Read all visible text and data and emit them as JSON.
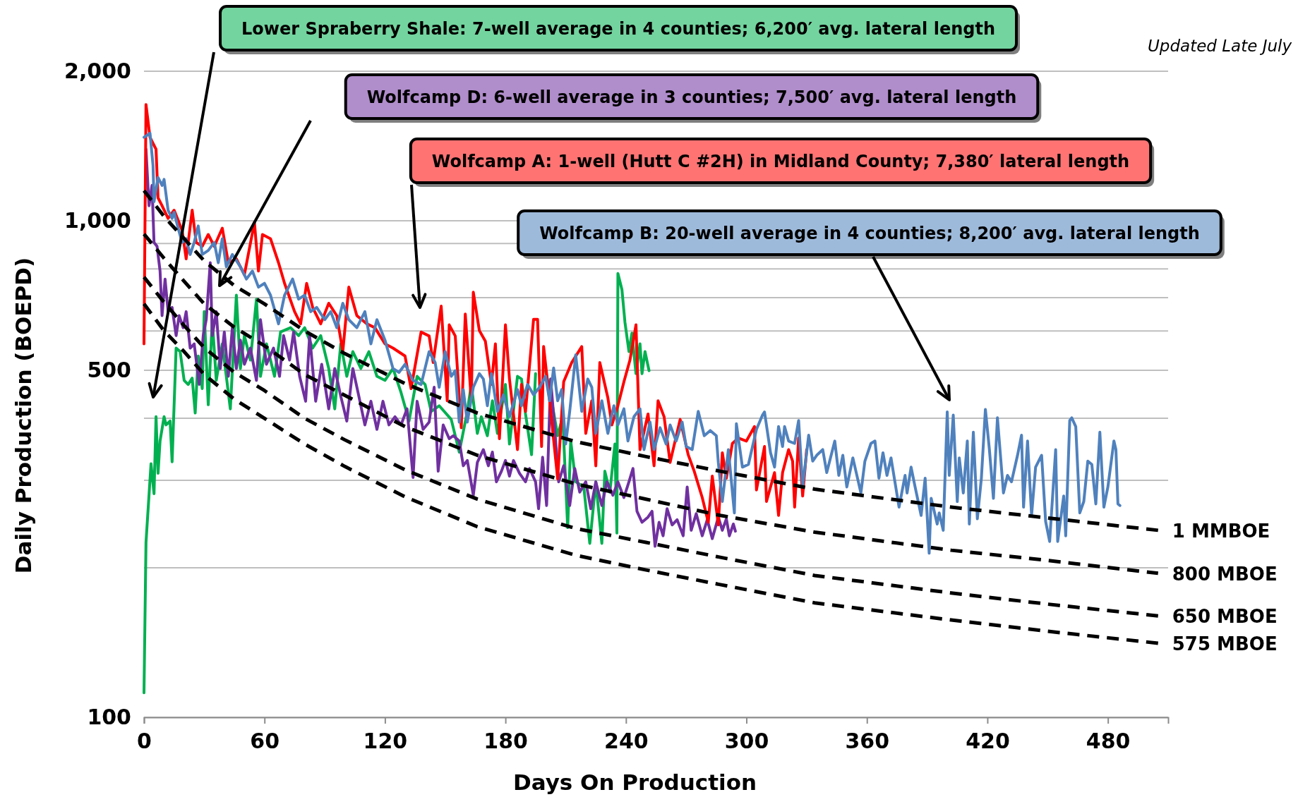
{
  "chart_data": {
    "type": "line",
    "xlabel": "Days On Production",
    "ylabel": "Daily Production (BOEPD)",
    "log": "y",
    "grid": "y",
    "xlim": [
      0,
      510
    ],
    "xticks": [
      0,
      60,
      120,
      180,
      240,
      300,
      360,
      420,
      480
    ],
    "ylim": [
      100,
      2000
    ],
    "yticks": [
      {
        "value": 100,
        "label": "100"
      },
      {
        "value": 200,
        "label": null
      },
      {
        "value": 300,
        "label": null
      },
      {
        "value": 400,
        "label": null
      },
      {
        "value": 500,
        "label": "500"
      },
      {
        "value": 600,
        "label": null
      },
      {
        "value": 700,
        "label": null
      },
      {
        "value": 800,
        "label": null
      },
      {
        "value": 900,
        "label": null
      },
      {
        "value": 1000,
        "label": "1,000"
      },
      {
        "value": 2000,
        "label": "2,000"
      }
    ],
    "series": [
      {
        "color": "#00b050",
        "x": [
          0,
          1,
          3.5,
          5,
          6,
          7,
          8,
          10,
          11,
          13,
          14,
          16,
          18,
          20,
          22,
          24,
          25.5,
          27,
          29,
          30,
          32,
          34,
          36,
          39,
          43,
          46,
          48,
          50,
          53,
          56,
          58,
          61,
          65,
          68,
          73,
          77,
          80,
          84,
          88,
          92,
          95,
          98,
          101,
          104,
          108,
          112,
          116,
          120,
          124,
          128,
          132,
          136,
          140,
          143,
          147,
          153,
          157,
          161,
          163,
          166,
          168,
          171,
          173.5,
          176,
          180,
          182,
          186,
          188,
          190,
          193,
          195,
          198,
          200,
          203,
          206,
          208.5,
          211,
          212.5,
          215,
          219,
          222,
          225,
          228,
          229.5,
          232,
          234.5,
          235.5,
          236,
          238,
          239.5,
          241.5,
          243,
          245,
          247,
          248,
          249.5,
          251.5
        ],
        "values": [
          112,
          225,
          324,
          282,
          403,
          310,
          360,
          403,
          388,
          395,
          327,
          554,
          545,
          477,
          468,
          482,
          410,
          534,
          459,
          656,
          426,
          632,
          477,
          565,
          418,
          708,
          504,
          587,
          524,
          695,
          486,
          565,
          486,
          597,
          609,
          587,
          609,
          554,
          587,
          504,
          418,
          565,
          486,
          545,
          504,
          545,
          486,
          477,
          504,
          451,
          395,
          486,
          468,
          413,
          424,
          398,
          342,
          413,
          468,
          373,
          403,
          369,
          434,
          373,
          468,
          355,
          486,
          480,
          408,
          338,
          492,
          null,
          499,
          434,
          369,
          403,
          241,
          360,
          298,
          291,
          224,
          298,
          224,
          313,
          284,
          355,
          235,
          783,
          727,
          625,
          545,
          594,
          492,
          565,
          492,
          545,
          499
        ]
      },
      {
        "color": "#7030a0",
        "x": [
          1,
          2.5,
          4,
          5,
          6.5,
          8,
          9,
          10.5,
          12,
          14,
          16,
          17.5,
          19.5,
          21,
          23,
          25,
          27.5,
          29.5,
          31,
          33,
          34,
          36,
          38,
          40,
          42,
          44,
          46,
          48,
          50,
          53,
          56,
          58,
          61,
          64.5,
          67.5,
          69.5,
          72.5,
          74.5,
          77.5,
          80.5,
          82.5,
          85.5,
          88.5,
          92,
          95,
          98,
          101,
          104,
          107,
          110,
          113,
          116,
          119,
          122,
          125,
          128,
          131,
          134,
          136,
          139,
          142,
          144.5,
          146.5,
          149,
          152,
          154,
          157,
          159,
          161,
          164,
          166,
          169,
          171.5,
          173.5,
          175.5,
          178,
          180,
          182,
          184,
          187,
          190,
          192,
          195,
          196.5,
          198.5,
          200.5,
          202.5,
          204.5,
          206.5,
          209,
          212,
          214.5,
          217,
          220,
          222.5,
          225,
          228,
          230.5,
          233.5,
          236,
          239,
          241.5,
          243.5,
          245.5,
          248,
          251,
          253,
          254.5,
          256.5,
          258.5,
          260.5,
          263,
          265.5,
          268.5,
          270.5,
          272.5,
          275,
          278,
          280.5,
          283,
          286,
          288,
          290,
          291.5,
          293.5,
          294.5
        ],
        "values": [
          1393,
          1072,
          1178,
          904,
          888,
          792,
          644,
          763,
          656,
          669,
          587,
          644,
          609,
          656,
          554,
          565,
          468,
          587,
          632,
          823,
          587,
          656,
          504,
          597,
          486,
          609,
          504,
          575,
          514,
          554,
          477,
          632,
          514,
          554,
          486,
          587,
          524,
          597,
          486,
          433,
          587,
          433,
          514,
          418,
          504,
          443,
          395,
          504,
          443,
          388,
          433,
          380,
          433,
          388,
          403,
          388,
          418,
          304,
          433,
          380,
          393,
          462,
          313,
          388,
          364,
          369,
          360,
          321,
          329,
          280,
          326,
          346,
          321,
          342,
          298,
          313,
          329,
          306,
          329,
          310,
          298,
          317,
          298,
          263,
          334,
          267,
          480,
          383,
          298,
          321,
          267,
          317,
          284,
          298,
          263,
          298,
          267,
          298,
          280,
          298,
          277,
          298,
          317,
          260,
          247,
          253,
          260,
          221,
          247,
          232,
          263,
          244,
          250,
          232,
          291,
          238,
          257,
          232,
          250,
          229,
          253,
          238,
          251,
          232,
          245,
          237
        ]
      },
      {
        "color": "#ff0000",
        "x": [
          0,
          1,
          3,
          6,
          7,
          9,
          12,
          15,
          19,
          21,
          24,
          26,
          29,
          32,
          35,
          39,
          42,
          46,
          50,
          55,
          57,
          59,
          63,
          67,
          70,
          75,
          78,
          81,
          84,
          88,
          92,
          96,
          99,
          102,
          106,
          111,
          115,
          120,
          124,
          130,
          133,
          138,
          142,
          144,
          148,
          151,
          152,
          155,
          158,
          160,
          163,
          164,
          167,
          170,
          173,
          175,
          177,
          180,
          182,
          186,
          188,
          190,
          194,
          196,
          198,
          199,
          202,
          206,
          209,
          213,
          218,
          220,
          223,
          225,
          227,
          231,
          233,
          236,
          239,
          242,
          245,
          247,
          251,
          254,
          256,
          259,
          262,
          267,
          271,
          274,
          278,
          281,
          283,
          286,
          288,
          290,
          293,
          296,
          300,
          304,
          305,
          309,
          310,
          314,
          316,
          318,
          321,
          323,
          324,
          326,
          328,
          330
        ],
        "values": [
          565,
          1714,
          1472,
          1393,
          1112,
          1072,
          1011,
          1050,
          956,
          838,
          1050,
          904,
          888,
          938,
          888,
          966,
          823,
          838,
          778,
          993,
          792,
          938,
          920,
          823,
          748,
          656,
          620,
          748,
          669,
          620,
          682,
          644,
          545,
          735,
          644,
          620,
          609,
          565,
          554,
          534,
          459,
          597,
          586,
          518,
          673,
          434,
          617,
          586,
          383,
          649,
          434,
          718,
          601,
          572,
          468,
          565,
          364,
          617,
          480,
          346,
          468,
          413,
          633,
          633,
          351,
          558,
          434,
          302,
          474,
          518,
          558,
          373,
          434,
          321,
          518,
          440,
          388,
          424,
          474,
          524,
          617,
          346,
          408,
          321,
          434,
          403,
          326,
          398,
          338,
          313,
          277,
          247,
          306,
          244,
          341,
          303,
          356,
          365,
          360,
          385,
          287,
          351,
          272,
          311,
          255,
          311,
          346,
          328,
          265,
          365,
          279,
          346
        ]
      },
      {
        "color": "#4f81bd",
        "x": [
          0,
          3,
          4.5,
          5,
          7,
          9,
          10,
          12,
          14,
          15,
          17,
          19,
          21,
          23,
          25,
          27,
          29,
          32,
          35,
          37,
          39,
          41,
          44,
          48,
          51,
          54,
          57,
          60,
          63,
          67,
          70,
          74,
          77,
          80,
          83,
          86,
          90,
          93,
          96,
          99,
          102,
          106,
          110,
          113,
          116,
          120,
          124,
          127,
          130,
          134,
          138,
          142,
          145,
          147,
          150,
          153,
          155,
          157,
          159,
          161,
          164,
          167,
          169,
          171,
          173,
          176,
          179,
          182,
          186,
          188,
          191,
          194,
          197,
          200,
          202,
          204,
          206,
          208,
          210,
          212,
          215,
          218,
          221,
          223,
          225,
          228,
          231,
          234,
          236,
          239,
          241,
          244,
          247,
          249,
          252,
          254,
          257,
          260,
          262,
          265,
          268,
          270,
          273,
          276,
          279,
          282,
          285,
          286,
          288,
          291,
          294,
          295,
          298,
          301,
          305,
          308,
          309,
          312,
          314,
          316,
          318,
          319,
          321,
          324,
          326,
          328,
          331,
          333,
          335,
          338,
          340,
          344,
          346,
          348,
          350,
          353,
          357,
          359,
          362,
          364,
          366,
          368,
          370,
          372,
          376,
          379,
          380,
          382,
          384,
          387,
          389,
          391,
          392,
          395,
          396,
          398,
          400,
          401,
          403,
          405,
          406,
          408,
          410,
          411,
          413,
          415,
          417,
          419,
          421,
          423,
          425,
          428,
          430,
          432,
          435,
          437,
          438,
          440,
          442,
          444,
          447,
          449,
          451,
          454,
          455,
          458,
          459,
          461,
          462,
          464,
          466,
          468,
          470,
          472,
          474,
          476,
          478,
          480,
          483,
          484,
          485,
          486
        ],
        "values": [
          1472,
          1500,
          1292,
          1092,
          1222,
          1178,
          1211,
          1050,
          1011,
          1040,
          966,
          904,
          920,
          855,
          904,
          976,
          855,
          871,
          904,
          823,
          920,
          808,
          855,
          808,
          763,
          792,
          735,
          748,
          708,
          620,
          708,
          763,
          695,
          708,
          656,
          669,
          632,
          656,
          609,
          682,
          632,
          609,
          656,
          565,
          632,
          575,
          504,
          495,
          514,
          477,
          468,
          545,
          518,
          462,
          545,
          486,
          499,
          393,
          457,
          393,
          462,
          492,
          480,
          424,
          492,
          413,
          446,
          403,
          457,
          424,
          468,
          446,
          462,
          486,
          434,
          505,
          434,
          457,
          355,
          413,
          537,
          413,
          480,
          462,
          373,
          434,
          373,
          424,
          388,
          418,
          360,
          403,
          418,
          346,
          393,
          346,
          383,
          355,
          388,
          360,
          393,
          351,
          346,
          413,
          369,
          378,
          369,
          326,
          272,
          346,
          258,
          390,
          319,
          323,
          380,
          406,
          412,
          341,
          319,
          385,
          351,
          385,
          360,
          356,
          396,
          291,
          370,
          328,
          337,
          346,
          311,
          360,
          307,
          337,
          291,
          333,
          283,
          328,
          356,
          360,
          303,
          341,
          307,
          333,
          265,
          307,
          283,
          319,
          291,
          255,
          303,
          214,
          276,
          245,
          258,
          238,
          412,
          307,
          406,
          272,
          333,
          283,
          360,
          245,
          375,
          251,
          303,
          417,
          346,
          276,
          401,
          283,
          307,
          298,
          337,
          370,
          265,
          360,
          255,
          319,
          337,
          248,
          226,
          346,
          226,
          279,
          232,
          396,
          401,
          385,
          258,
          272,
          328,
          323,
          269,
          375,
          265,
          291,
          360,
          346,
          269,
          267
        ]
      },
      {
        "name": "1 MMBOE",
        "color": "#000000",
        "line_style": "dashed",
        "x": [
          0,
          10,
          20,
          30,
          45,
          60,
          80,
          100,
          130,
          166,
          215,
          250,
          287,
          334,
          402,
          450,
          505
        ],
        "values": [
          1150,
          1020,
          920,
          830,
          740,
          680,
          600,
          540,
          470,
          410,
          359,
          335,
          313,
          288,
          265,
          252,
          238
        ]
      },
      {
        "name": "800 MBOE",
        "color": "#000000",
        "line_style": "dashed",
        "x": [
          0,
          10,
          20,
          30,
          45,
          60,
          80,
          100,
          130,
          166,
          215,
          250,
          287,
          334,
          402,
          450,
          505
        ],
        "values": [
          940,
          840,
          755,
          680,
          610,
          560,
          490,
          445,
          385,
          337,
          295,
          275,
          255,
          236,
          217,
          207,
          195
        ]
      },
      {
        "name": "650 MBOE",
        "color": "#000000",
        "line_style": "dashed",
        "x": [
          0,
          10,
          20,
          30,
          45,
          60,
          80,
          100,
          130,
          166,
          215,
          250,
          287,
          334,
          402,
          450,
          505
        ],
        "values": [
          770,
          685,
          615,
          555,
          495,
          455,
          400,
          362,
          315,
          275,
          240,
          225,
          210,
          193,
          178,
          169,
          160
        ]
      },
      {
        "name": "575 MBOE",
        "color": "#000000",
        "line_style": "dashed",
        "x": [
          0,
          10,
          20,
          30,
          45,
          60,
          80,
          100,
          130,
          166,
          215,
          250,
          287,
          334,
          402,
          450,
          505
        ],
        "values": [
          680,
          600,
          545,
          490,
          437,
          400,
          355,
          320,
          278,
          242,
          212,
          198,
          185,
          170,
          157,
          149,
          141
        ]
      }
    ],
    "annotations": [
      "Lower Spraberry Shale: 7-well average in 4 counties; 6,200′ avg. lateral length",
      "Wolfcamp D: 6-well average in 3 counties; 7,500′ avg. lateral length",
      "Wolfcamp A: 1-well (Hutt C #2H) in Midland County; 7,380′ lateral length",
      "Wolfcamp B: 20-well average in 4 counties; 8,200′ avg. lateral length",
      "Updated Late July"
    ]
  }
}
